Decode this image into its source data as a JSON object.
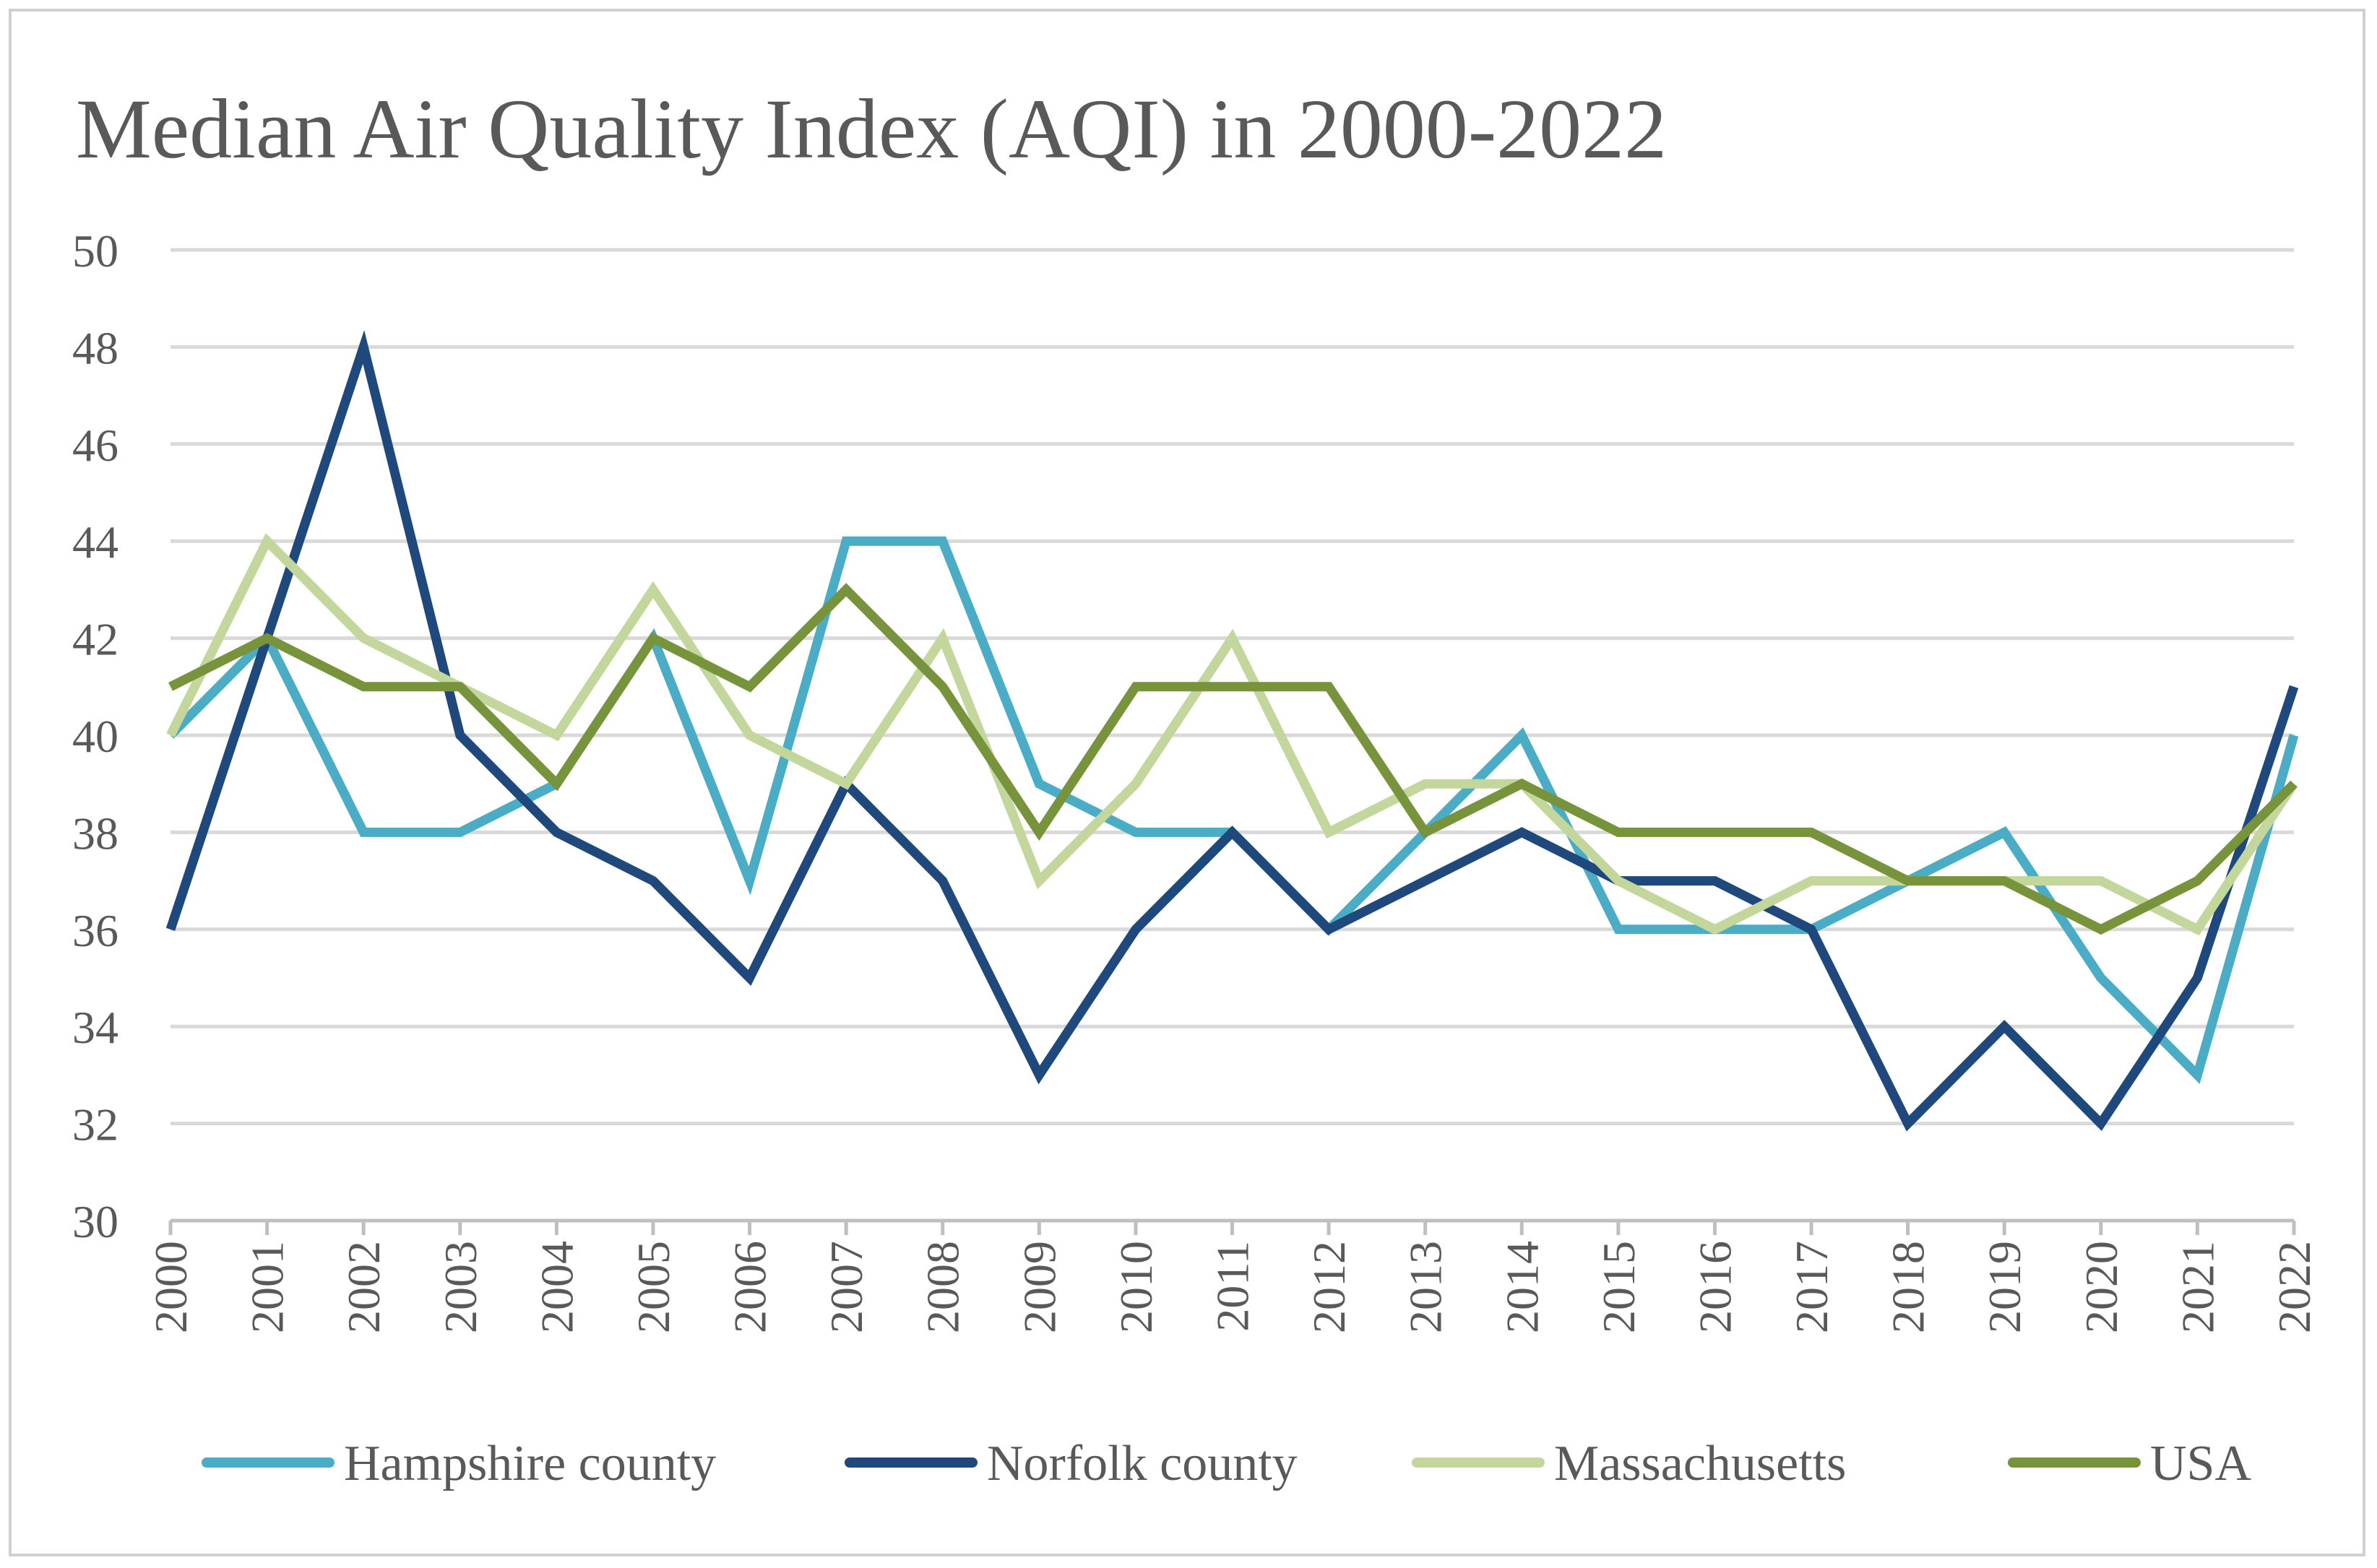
{
  "chart_data": {
    "type": "line",
    "title": "Median Air Quality Index (AQI) in 2000-2022",
    "xlabel": "",
    "ylabel": "",
    "ylim": [
      30,
      50
    ],
    "y_ticks": [
      "30",
      "32",
      "34",
      "36",
      "38",
      "40",
      "42",
      "44",
      "46",
      "48",
      "50"
    ],
    "categories": [
      "2000",
      "2001",
      "2002",
      "2003",
      "2004",
      "2005",
      "2006",
      "2007",
      "2008",
      "2009",
      "2010",
      "2011",
      "2012",
      "2013",
      "2014",
      "2015",
      "2016",
      "2017",
      "2018",
      "2019",
      "2020",
      "2021",
      "2022"
    ],
    "grid": true,
    "legend_position": "bottom",
    "series": [
      {
        "name": "Hampshire county",
        "color": "#4bacc6",
        "values": [
          40,
          42,
          38,
          38,
          39,
          42,
          37,
          44,
          44,
          39,
          38,
          38,
          36,
          38,
          40,
          36,
          36,
          36,
          37,
          38,
          35,
          33,
          40
        ]
      },
      {
        "name": "Norfolk county",
        "color": "#1f497d",
        "values": [
          36,
          42,
          48,
          40,
          38,
          37,
          35,
          39,
          37,
          33,
          36,
          38,
          36,
          37,
          38,
          37,
          37,
          36,
          32,
          34,
          32,
          35,
          41
        ]
      },
      {
        "name": "Massachusetts",
        "color": "#c3d69b",
        "values": [
          40,
          44,
          42,
          41,
          40,
          43,
          40,
          39,
          42,
          37,
          39,
          42,
          38,
          39,
          39,
          37,
          36,
          37,
          37,
          37,
          37,
          36,
          39
        ]
      },
      {
        "name": "USA",
        "color": "#77933c",
        "values": [
          41,
          42,
          41,
          41,
          39,
          42,
          41,
          43,
          41,
          38,
          41,
          41,
          41,
          38,
          39,
          38,
          38,
          38,
          37,
          37,
          36,
          37,
          39
        ]
      }
    ]
  }
}
